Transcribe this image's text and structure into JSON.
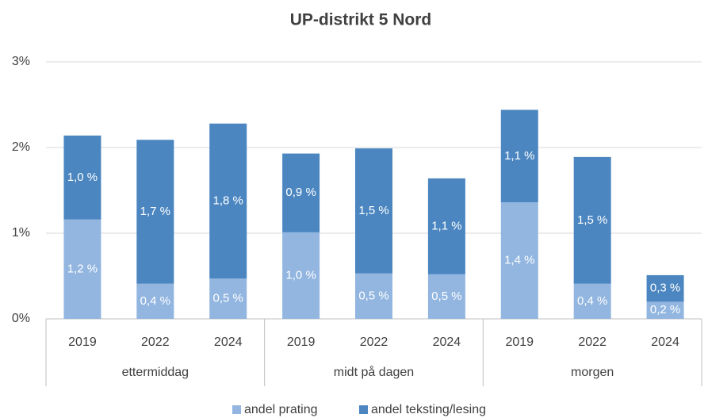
{
  "chart_data": {
    "type": "stacked_bar",
    "title": "UP-distrikt 5 Nord",
    "groups": [
      {
        "name": "ettermiddag",
        "categories": [
          "2019",
          "2022",
          "2024"
        ]
      },
      {
        "name": "midt på dagen",
        "categories": [
          "2019",
          "2022",
          "2024"
        ]
      },
      {
        "name": "morgen",
        "categories": [
          "2019",
          "2022",
          "2024"
        ]
      }
    ],
    "series": [
      {
        "name": "andel prating",
        "color": "#92b6e0",
        "values": [
          1.16,
          0.41,
          0.47,
          1.01,
          0.53,
          0.52,
          1.36,
          0.41,
          0.2
        ],
        "value_labels": [
          "1,2 %",
          "0,4 %",
          "0,5 %",
          "1,0 %",
          "0,5 %",
          "0,5 %",
          "1,4 %",
          "0,4 %",
          "0,2 %"
        ]
      },
      {
        "name": "andel teksting/lesing",
        "color": "#4b86c1",
        "values": [
          0.98,
          1.68,
          1.81,
          0.92,
          1.46,
          1.12,
          1.08,
          1.48,
          0.31
        ],
        "value_labels": [
          "1,0 %",
          "1,7 %",
          "1,8 %",
          "0,9 %",
          "1,5 %",
          "1,1 %",
          "1,1 %",
          "1,5 %",
          "0,3 %"
        ]
      }
    ],
    "ylim": [
      0,
      3
    ],
    "yticks": [
      {
        "value": 0,
        "label": "0%"
      },
      {
        "value": 1,
        "label": "1%"
      },
      {
        "value": 2,
        "label": "2%"
      },
      {
        "value": 3,
        "label": "3%"
      }
    ],
    "grid": true,
    "legend": "bottom"
  }
}
